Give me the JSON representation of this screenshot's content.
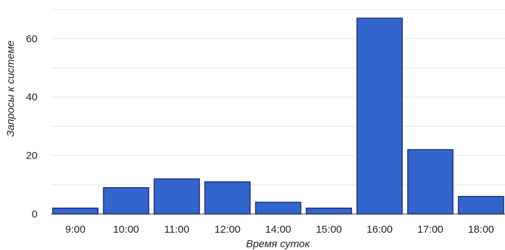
{
  "chart_data": {
    "type": "bar",
    "categories": [
      "9:00",
      "10:00",
      "11:00",
      "12:00",
      "14:00",
      "15:00",
      "16:00",
      "17:00",
      "18:00"
    ],
    "values": [
      2,
      9,
      12,
      11,
      4,
      2,
      67,
      22,
      6
    ],
    "xlabel": "Время суток",
    "ylabel": "Запросы к системе",
    "ylim": [
      0,
      70
    ],
    "yticks": [
      0,
      20,
      40,
      60
    ],
    "grid": true,
    "bar_color": "#3366cc",
    "bar_outline": "#1a2a80"
  }
}
